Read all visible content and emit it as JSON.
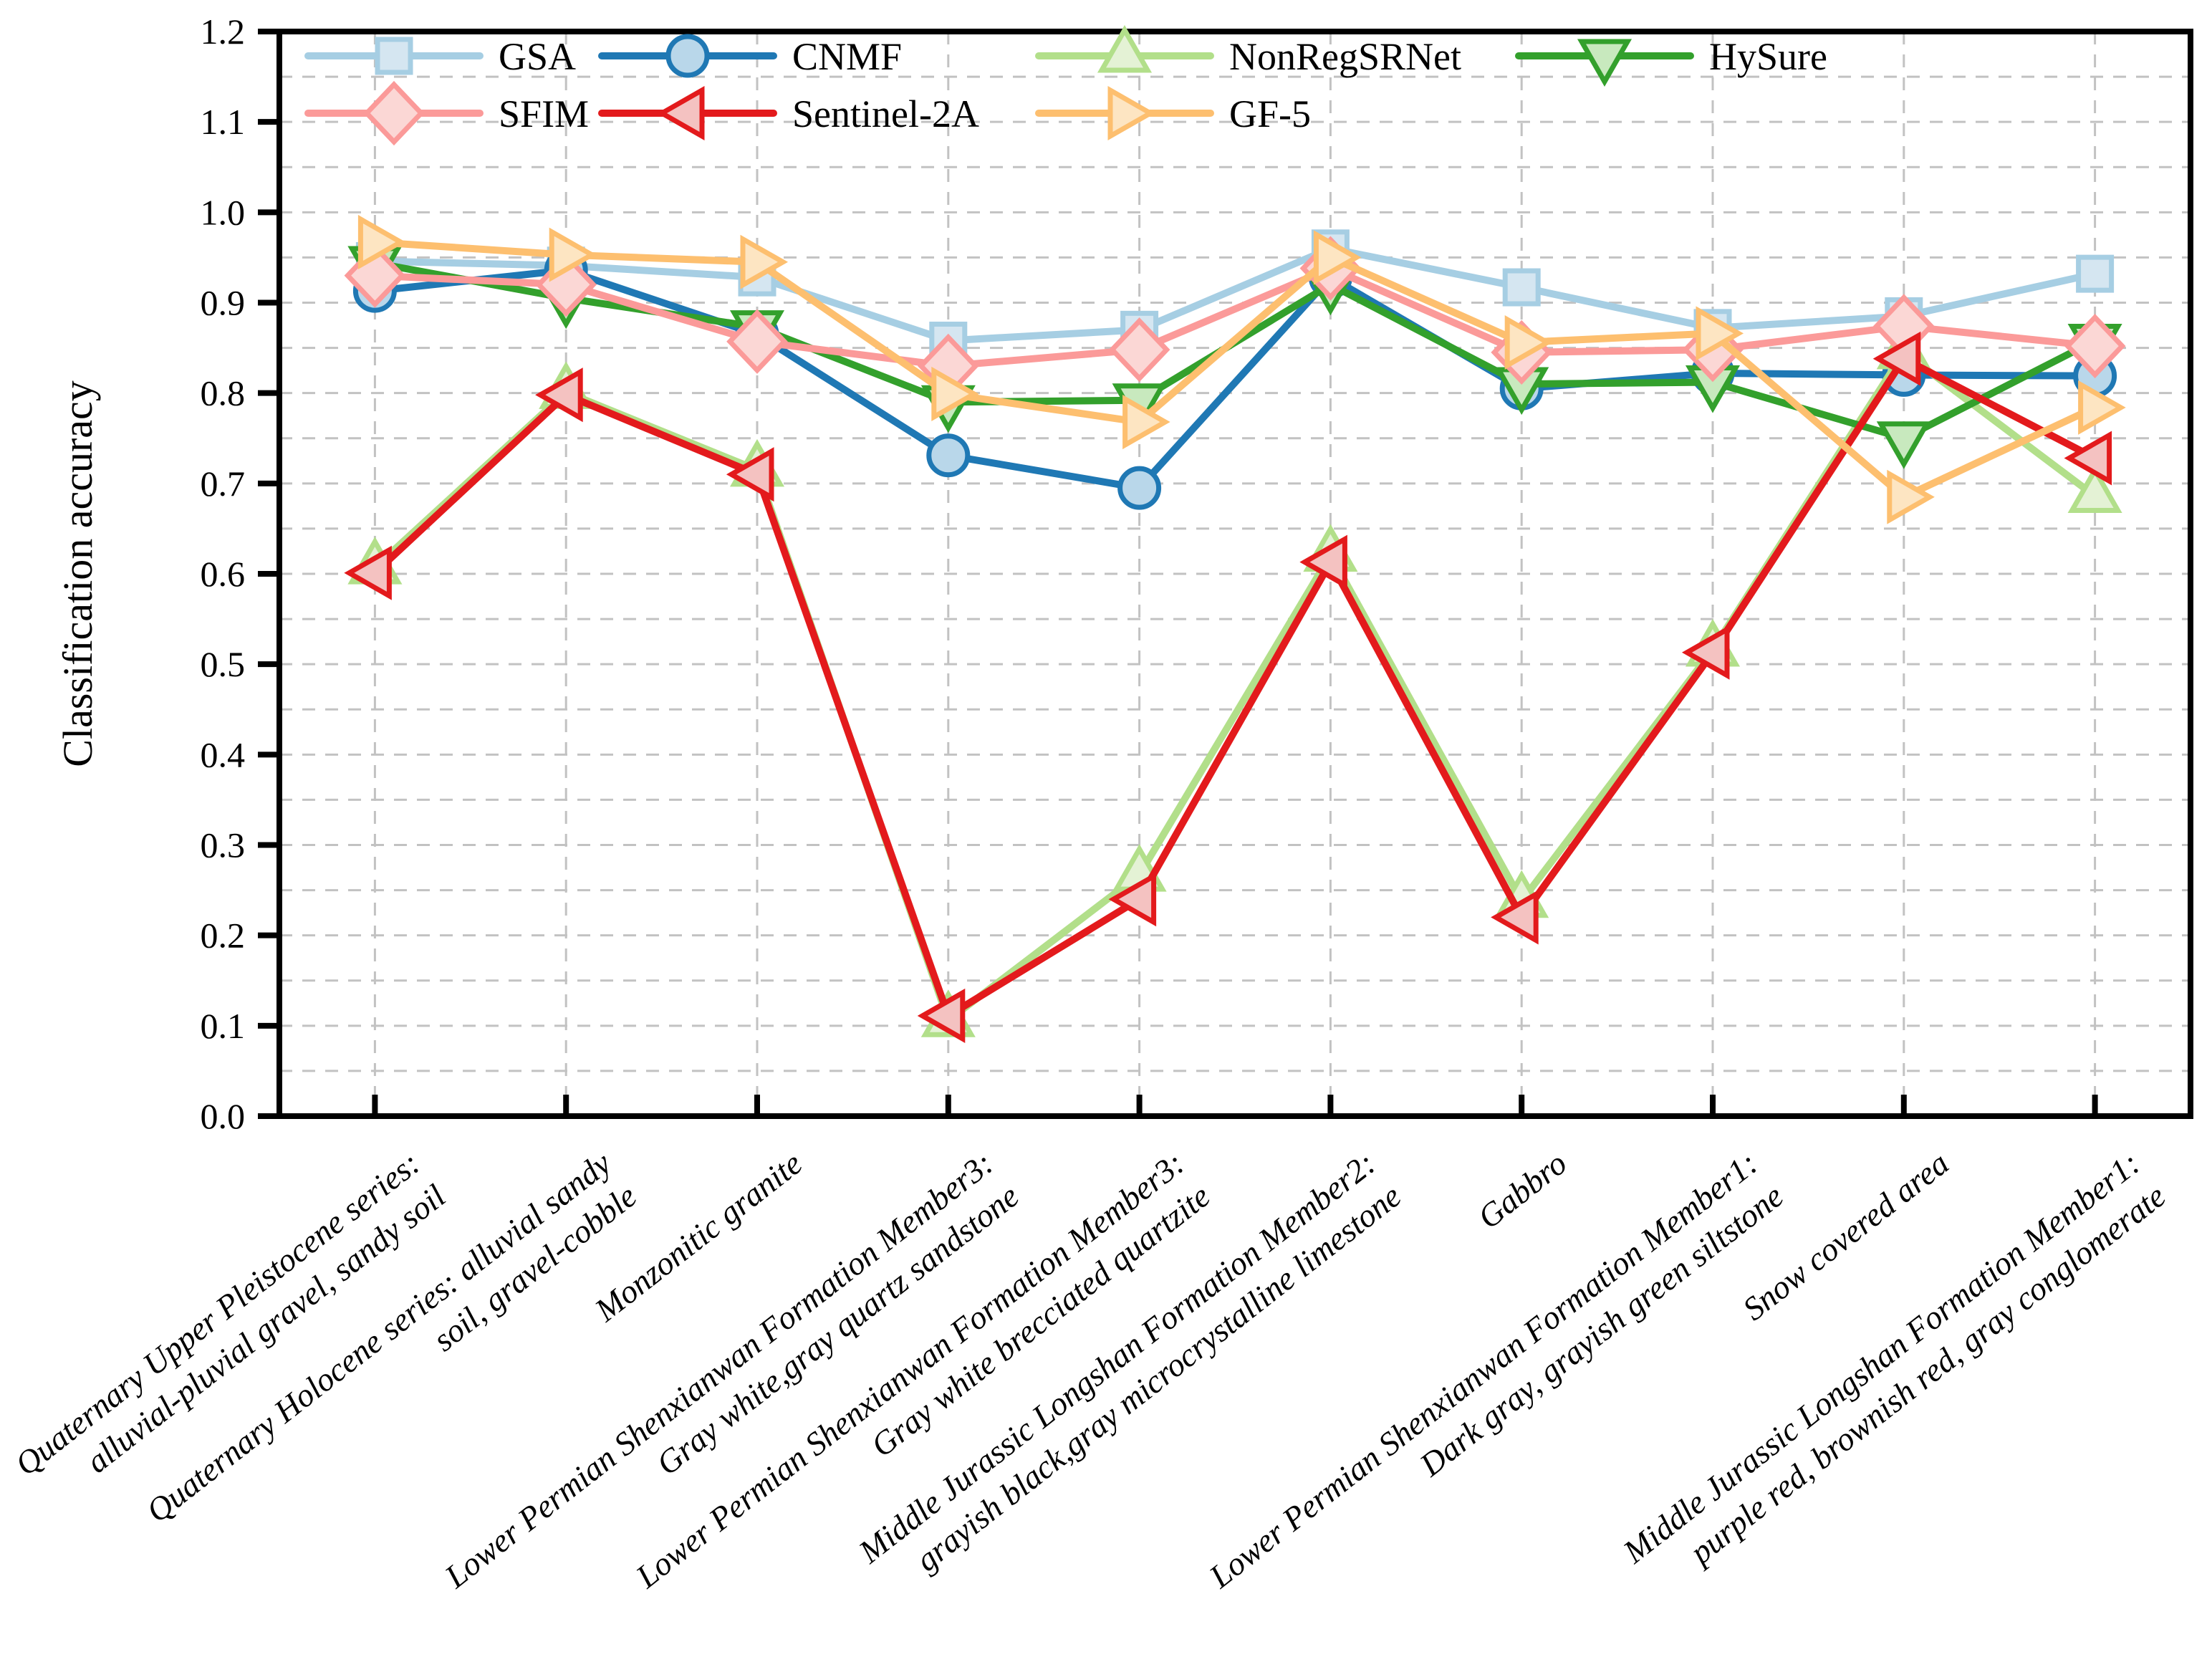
{
  "chart_data": {
    "type": "line",
    "title": "",
    "ylabel": "Classification accuracy",
    "xlabel": "",
    "ylim": [
      0,
      1.2
    ],
    "ytick_step": 0.1,
    "ytick_labels": [
      "0.0",
      "0.1",
      "0.2",
      "0.3",
      "0.4",
      "0.5",
      "0.6",
      "0.7",
      "0.8",
      "0.9",
      "1.0",
      "1.1",
      "1.2"
    ],
    "grid": {
      "shown": true,
      "style": "dashed",
      "color": "#c2c2c2",
      "horizontal_step": 0.05,
      "vertical_lines": "one per category"
    },
    "legend_position": "top-left inside plot, two rows",
    "legend_rows": [
      [
        "GSA",
        "CNMF",
        "NonRegSRNet",
        "HySure"
      ],
      [
        "SFIM",
        "Sentinel-2A",
        "GF-5"
      ]
    ],
    "categories": [
      {
        "label": "Quaternary Upper Pleistocene series: alluvial-pluvial gravel, sandy soil",
        "lines": [
          "Quaternary Upper Pleistocene series:",
          "alluvial-pluvial gravel, sandy soil"
        ]
      },
      {
        "label": "Quaternary Holocene series: alluvial sandy soil, gravel-cobble",
        "lines": [
          "Quaternary Holocene series: alluvial sandy",
          "soil, gravel-cobble"
        ]
      },
      {
        "label": "Monzonitic granite",
        "lines": [
          "Monzonitic granite"
        ]
      },
      {
        "label": "Lower Permian Shenxianwan Formation Member3: Gray white,gray quartz sandstone",
        "lines": [
          "Lower Permian Shenxianwan Formation Member3:",
          "Gray white,gray quartz sandstone"
        ]
      },
      {
        "label": "Lower Permian Shenxianwan Formation Member3: Gray white brecciated quartzite",
        "lines": [
          "Lower Permian Shenxianwan Formation Member3:",
          "Gray white brecciated quartzite"
        ]
      },
      {
        "label": "Middle Jurassic Longshan Formation Member2: grayish black,gray microcrystalline limestone",
        "lines": [
          "Middle Jurassic Longshan Formation Member2:",
          "grayish black,gray microcrystalline limestone"
        ]
      },
      {
        "label": "Gabbro",
        "lines": [
          "Gabbro"
        ]
      },
      {
        "label": "Lower Permian Shenxianwan Formation Member1: Dark gray, grayish green siltstone",
        "lines": [
          "Lower Permian Shenxianwan Formation Member1:",
          "Dark gray, grayish green siltstone"
        ]
      },
      {
        "label": "Snow covered area",
        "lines": [
          "Snow covered area"
        ]
      },
      {
        "label": "Middle Jurassic Longshan Formation Member1: purple red, brownish red, gray conglomerate",
        "lines": [
          "Middle Jurassic Longshan Formation Member1:",
          "purple red, brownish red, gray conglomerate"
        ]
      }
    ],
    "series": [
      {
        "name": "GSA",
        "marker": "square",
        "color": "#A6CEE3",
        "marker_fill": "#D5E6F1",
        "values": [
          0.946,
          0.941,
          0.928,
          0.858,
          0.87,
          0.96,
          0.917,
          0.872,
          0.885,
          0.932
        ]
      },
      {
        "name": "CNMF",
        "marker": "circle",
        "color": "#1F78B4",
        "marker_fill": "#B9D7EA",
        "values": [
          0.913,
          0.936,
          0.865,
          0.731,
          0.695,
          0.928,
          0.805,
          0.822,
          0.82,
          0.819
        ]
      },
      {
        "name": "NonRegSRNet",
        "marker": "triangle-up",
        "color": "#B2DF8A",
        "marker_fill": "#E4F2D5",
        "values": [
          0.607,
          0.801,
          0.715,
          0.106,
          0.267,
          0.621,
          0.238,
          0.516,
          0.845,
          0.686
        ]
      },
      {
        "name": "HySure",
        "marker": "triangle-down",
        "color": "#33A02C",
        "marker_fill": "#C8E9BE",
        "values": [
          0.944,
          0.905,
          0.873,
          0.79,
          0.792,
          0.92,
          0.81,
          0.812,
          0.75,
          0.858
        ]
      },
      {
        "name": "SFIM",
        "marker": "diamond",
        "color": "#FB9A99",
        "marker_fill": "#FBD7D5",
        "values": [
          0.93,
          0.92,
          0.857,
          0.83,
          0.848,
          0.938,
          0.845,
          0.848,
          0.874,
          0.852
        ]
      },
      {
        "name": "Sentinel-2A",
        "marker": "triangle-left",
        "color": "#E31A1C",
        "marker_fill": "#F4C2C1",
        "values": [
          0.601,
          0.798,
          0.71,
          0.111,
          0.24,
          0.613,
          0.22,
          0.513,
          0.838,
          0.728
        ]
      },
      {
        "name": "GF-5",
        "marker": "triangle-right",
        "color": "#FDBF6F",
        "marker_fill": "#FDE5C2",
        "values": [
          0.967,
          0.953,
          0.945,
          0.799,
          0.768,
          0.95,
          0.856,
          0.866,
          0.685,
          0.784
        ]
      }
    ],
    "draw_order": [
      "GSA",
      "CNMF",
      "NonRegSRNet",
      "HySure",
      "SFIM",
      "Sentinel-2A",
      "GF-5"
    ]
  }
}
